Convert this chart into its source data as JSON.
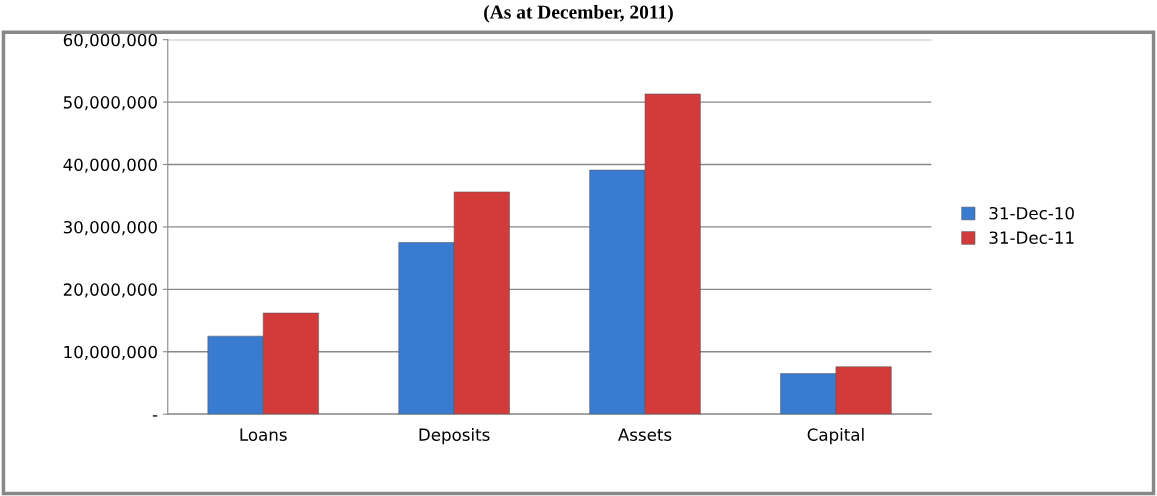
{
  "chart_data": {
    "type": "bar",
    "title": "(As at December, 2011)",
    "categories": [
      "Loans",
      "Deposits",
      "Assets",
      "Capital"
    ],
    "series": [
      {
        "name": "31-Dec-10",
        "color": "#3a7bd2",
        "values": [
          12500000,
          27500000,
          39100000,
          6500000
        ]
      },
      {
        "name": "31-Dec-11",
        "color": "#d23b3a",
        "values": [
          16200000,
          35600000,
          51300000,
          7600000
        ]
      }
    ],
    "ylim": [
      0,
      60000000
    ],
    "yticks": [
      {
        "value": 0,
        "label": "-"
      },
      {
        "value": 10000000,
        "label": "10,000,000"
      },
      {
        "value": 20000000,
        "label": "20,000,000"
      },
      {
        "value": 30000000,
        "label": "30,000,000"
      },
      {
        "value": 40000000,
        "label": "40,000,000"
      },
      {
        "value": 50000000,
        "label": "50,000,000"
      },
      {
        "value": 60000000,
        "label": "60,000,000"
      }
    ],
    "grid": "y",
    "legend": "right"
  }
}
